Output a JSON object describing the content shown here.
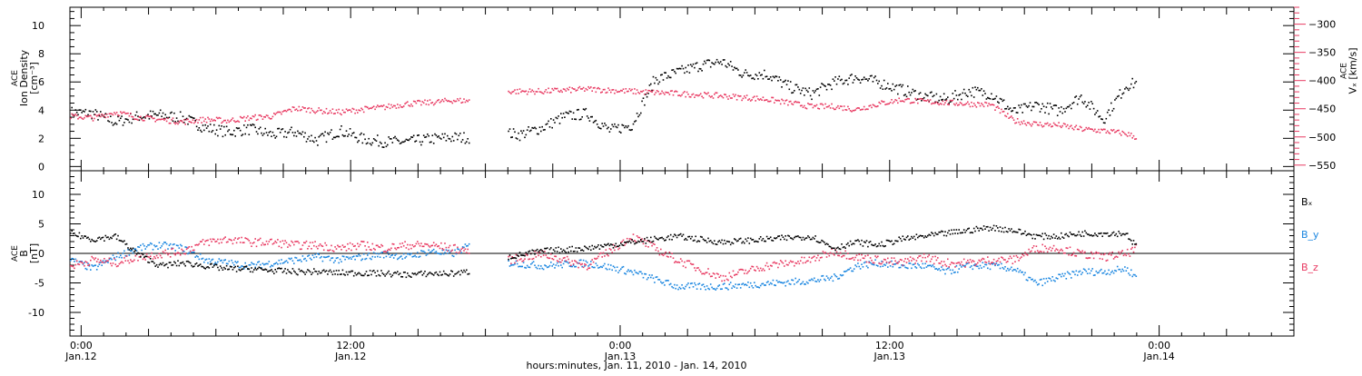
{
  "colors": {
    "black": "#000000",
    "blue": "#1a86e0",
    "red": "#e83a62",
    "background": "#ffffff"
  },
  "chart_data": [
    {
      "type": "scatter",
      "panel": "ion-density",
      "ylabel_lines": [
        "ACE",
        "Ion Density",
        "[cm⁻³]"
      ],
      "ylim": [
        -0.3,
        11.3
      ],
      "yticks": [
        0,
        2,
        4,
        6,
        8,
        10
      ],
      "y2label_lines": [
        "ACE",
        "Vₓ [km/s]"
      ],
      "y2lim": [
        -560,
        -270
      ],
      "y2ticks": [
        -300,
        -350,
        -400,
        -450,
        -500,
        -550
      ],
      "y2tick_labels": [
        "−300",
        "−350",
        "−400",
        "−450",
        "−500",
        "−550"
      ],
      "xlim_hours": [
        -0.5,
        54
      ],
      "series": [
        {
          "color": "black",
          "axis": "left",
          "x": [
            -0.5,
            0.5,
            1.5,
            2.5,
            3.5,
            4.5,
            5.5,
            6.5,
            7.5,
            8.5,
            9.5,
            10.5,
            11.5,
            12.5,
            13.5,
            14.5,
            15.5,
            16.5,
            17.3,
            19.0,
            19.5,
            20.5,
            21.5,
            22.5,
            23.5,
            24.5,
            25.5,
            26.5,
            27.5,
            28.5,
            29.5,
            30.5,
            31.5,
            32.5,
            33.5,
            34.5,
            35.5,
            36.5,
            37.5,
            38.5,
            39.5,
            40.5,
            41.5,
            42.5,
            43.5,
            44.5,
            45.5,
            46.5,
            47.0
          ],
          "y": [
            3.9,
            3.8,
            3.2,
            3.6,
            3.7,
            3.5,
            2.8,
            2.5,
            2.7,
            2.3,
            2.5,
            1.9,
            2.6,
            2.0,
            1.8,
            1.8,
            2.0,
            2.1,
            2.1,
            2.4,
            2.3,
            2.8,
            3.6,
            3.8,
            2.6,
            3.0,
            6.2,
            6.7,
            7.2,
            7.5,
            6.6,
            6.6,
            5.7,
            5.2,
            6.0,
            6.4,
            6.0,
            5.5,
            5.0,
            4.8,
            5.4,
            5.2,
            3.9,
            4.4,
            4.0,
            5.0,
            3.4,
            5.8,
            6.0
          ]
        },
        {
          "color": "red",
          "axis": "right",
          "x": [
            -0.5,
            0.5,
            1.5,
            2.5,
            3.5,
            4.5,
            5.5,
            6.5,
            7.5,
            8.5,
            9.5,
            10.5,
            11.5,
            12.5,
            13.5,
            14.5,
            15.5,
            16.5,
            17.3,
            19.0,
            20.5,
            22.5,
            24.5,
            26.5,
            28.5,
            30.5,
            32.5,
            33.5,
            34.5,
            35.5,
            36.5,
            37.5,
            38.5,
            39.5,
            40.5,
            41.5,
            42.5,
            43.5,
            44.5,
            45.5,
            46.5,
            47.0
          ],
          "y": [
            -462,
            -465,
            -455,
            -464,
            -468,
            -472,
            -468,
            -470,
            -465,
            -462,
            -448,
            -452,
            -455,
            -450,
            -446,
            -440,
            -438,
            -434,
            -435,
            -418,
            -418,
            -414,
            -418,
            -422,
            -426,
            -432,
            -445,
            -445,
            -450,
            -440,
            -433,
            -436,
            -438,
            -440,
            -442,
            -470,
            -476,
            -478,
            -485,
            -488,
            -493,
            -500
          ]
        }
      ]
    },
    {
      "type": "scatter",
      "panel": "magnetic-field",
      "ylabel_lines": [
        "ACE",
        "B",
        "[nT]"
      ],
      "ylim": [
        -14,
        14
      ],
      "yticks": [
        10,
        5,
        0,
        -5,
        -10
      ],
      "xlim_hours": [
        -0.5,
        54
      ],
      "xticks_hours": [
        0,
        12,
        24,
        36,
        48
      ],
      "xtick_labels": [
        [
          "0:00",
          "Jan.12"
        ],
        [
          "12:00",
          "Jan.12"
        ],
        [
          "0:00",
          "Jan.13"
        ],
        [
          "12:00",
          "Jan.13"
        ],
        [
          "0:00",
          "Jan.14"
        ]
      ],
      "xlabel": "hours:minutes, Jan. 11, 2010 - Jan. 14, 2010",
      "series": [
        {
          "name": "Bₓ",
          "color": "black",
          "x": [
            -0.5,
            0.5,
            1.5,
            2.5,
            3.5,
            4.5,
            5.5,
            6.5,
            7.5,
            8.5,
            9.5,
            10.5,
            11.5,
            12.5,
            13.5,
            14.5,
            15.5,
            16.5,
            17.3,
            19.0,
            20.5,
            22.5,
            24.5,
            26.5,
            28.5,
            30.5,
            32.5,
            33.5,
            34.5,
            35.5,
            36.5,
            37.5,
            38.5,
            39.5,
            40.5,
            41.5,
            42.5,
            43.5,
            44.5,
            45.5,
            46.5,
            47.0
          ],
          "y": [
            3.5,
            2.5,
            3.0,
            0.0,
            -2.0,
            -1.5,
            -2.0,
            -2.5,
            -2.5,
            -2.8,
            -3.0,
            -3.0,
            -3.2,
            -3.2,
            -3.3,
            -3.5,
            -3.3,
            -3.3,
            -3.0,
            -0.5,
            0.5,
            1.0,
            2.0,
            3.0,
            2.0,
            2.5,
            3.0,
            1.0,
            2.0,
            1.5,
            2.5,
            3.0,
            3.5,
            4.0,
            4.5,
            4.0,
            3.0,
            3.0,
            3.5,
            3.5,
            3.5,
            1.0
          ]
        },
        {
          "name": "B_y",
          "color": "blue",
          "x": [
            -0.5,
            0.5,
            1.5,
            2.5,
            3.5,
            4.5,
            5.5,
            6.5,
            7.5,
            8.5,
            9.5,
            10.5,
            11.5,
            12.5,
            13.5,
            14.5,
            15.5,
            16.5,
            17.3,
            19.0,
            20.5,
            22.5,
            24.5,
            26.5,
            28.5,
            30.5,
            32.5,
            33.5,
            34.5,
            35.5,
            36.5,
            37.5,
            38.5,
            39.5,
            40.5,
            41.5,
            42.5,
            43.5,
            44.5,
            45.5,
            46.5,
            47.0
          ],
          "y": [
            -1.0,
            -2.5,
            -0.5,
            1.0,
            1.5,
            1.0,
            -1.0,
            -1.5,
            -2.0,
            -1.5,
            -1.0,
            -0.5,
            -1.0,
            -0.5,
            0.0,
            -0.5,
            0.5,
            0.0,
            1.5,
            -1.5,
            -2.0,
            -1.5,
            -3.0,
            -5.5,
            -5.5,
            -5.0,
            -4.5,
            -4.0,
            -2.0,
            -1.5,
            -2.0,
            -2.0,
            -3.0,
            -2.0,
            -2.0,
            -2.5,
            -5.0,
            -4.0,
            -3.0,
            -3.0,
            -2.5,
            -4.0
          ]
        },
        {
          "name": "B_z",
          "color": "red",
          "x": [
            -0.5,
            0.5,
            1.5,
            2.5,
            3.5,
            4.5,
            5.5,
            6.5,
            7.5,
            8.5,
            9.5,
            10.5,
            11.5,
            12.5,
            13.5,
            14.5,
            15.5,
            16.5,
            17.3,
            19.0,
            20.5,
            22.5,
            24.5,
            26.5,
            28.5,
            30.5,
            32.5,
            33.5,
            34.5,
            35.5,
            36.5,
            37.5,
            38.5,
            39.5,
            40.5,
            41.5,
            42.5,
            43.5,
            44.5,
            45.5,
            46.5,
            47.0
          ],
          "y": [
            -2.0,
            -1.0,
            -1.5,
            -0.5,
            0.0,
            0.5,
            2.0,
            2.5,
            2.0,
            2.0,
            1.5,
            1.5,
            1.0,
            1.5,
            1.0,
            1.5,
            1.5,
            1.0,
            0.5,
            -1.0,
            0.0,
            -2.0,
            3.0,
            -1.0,
            -4.0,
            -2.0,
            -1.0,
            0.5,
            -0.5,
            -1.0,
            -1.5,
            -0.5,
            -1.5,
            -1.5,
            -1.0,
            -1.0,
            1.0,
            1.0,
            0.0,
            -0.5,
            0.0,
            1.0
          ]
        }
      ]
    }
  ]
}
